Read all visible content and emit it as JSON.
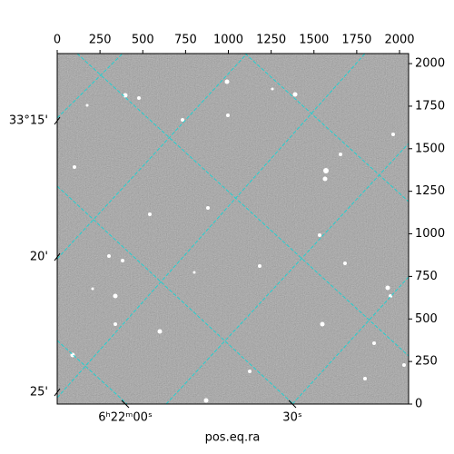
{
  "chart_data": {
    "type": "image",
    "xlabel": "pos.eq.ra",
    "xlim": [
      0,
      2053
    ],
    "ylim": [
      0,
      2059
    ],
    "xticks": [
      0,
      250,
      500,
      750,
      1000,
      1250,
      1500,
      1750,
      2000
    ],
    "yticks": [
      0,
      250,
      500,
      750,
      1000,
      1250,
      1500,
      1750,
      2000
    ],
    "world_yticks": [
      {
        "value": 1664,
        "label": "33°15'"
      },
      {
        "value": 864,
        "label": "20'"
      },
      {
        "value": 69,
        "label": "25'"
      }
    ],
    "world_xticks": [
      {
        "value": 398,
        "label": "6ʰ22ᵐ00ˢ"
      },
      {
        "value": 1374,
        "label": "30ˢ"
      }
    ]
  }
}
